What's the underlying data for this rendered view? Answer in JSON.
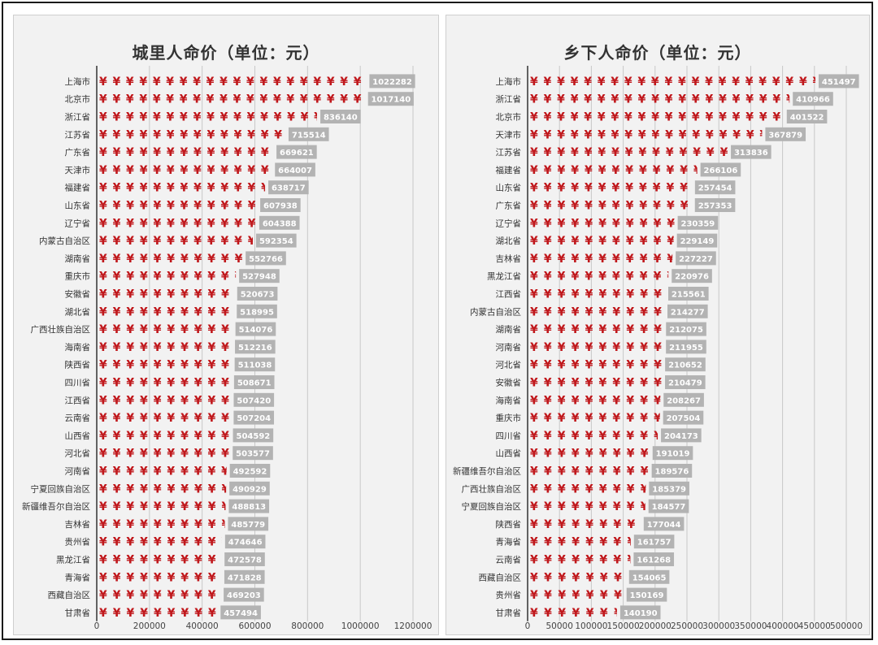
{
  "colors": {
    "yen": "#c0181c",
    "label_box": "#b3b3b3",
    "grid": "#c8c8c8",
    "axis": "#333333"
  },
  "chart_data": [
    {
      "type": "bar",
      "orientation": "horizontal",
      "mark_symbol": "¥",
      "title": "城里人命价（单位：元）",
      "xlim": [
        0,
        1200000
      ],
      "xticks": [
        "0",
        "200000",
        "400000",
        "600000",
        "800000",
        "1000000",
        "1200000"
      ],
      "grid": true,
      "categories": [
        "上海市",
        "北京市",
        "浙江省",
        "江苏省",
        "广东省",
        "天津市",
        "福建省",
        "山东省",
        "辽宁省",
        "内蒙古自治区",
        "湖南省",
        "重庆市",
        "安徽省",
        "湖北省",
        "广西壮族自治区",
        "海南省",
        "陕西省",
        "四川省",
        "江西省",
        "云南省",
        "山西省",
        "河北省",
        "河南省",
        "宁夏回族自治区",
        "新疆维吾尔自治区",
        "吉林省",
        "贵州省",
        "黑龙江省",
        "青海省",
        "西藏自治区",
        "甘肃省"
      ],
      "values": [
        1022282,
        1017140,
        836140,
        715514,
        669621,
        664007,
        638717,
        607938,
        604388,
        592354,
        552766,
        527948,
        520673,
        518995,
        514076,
        512216,
        511038,
        508671,
        507420,
        507204,
        504592,
        503577,
        492592,
        490929,
        488813,
        485779,
        474646,
        472578,
        471828,
        469203,
        457494
      ],
      "value_labels": [
        "1022282",
        "1017140",
        "836140",
        "715514",
        "669621",
        "664007",
        "638717",
        "607938",
        "604388",
        "592354",
        "552766",
        "527948",
        "520673",
        "518995",
        "514076",
        "512216",
        "511038",
        "508671",
        "507420",
        "507204",
        "504592",
        "503577",
        "492592",
        "490929",
        "488813",
        "485779",
        "474646",
        "472578",
        "471828",
        "469203",
        "457494"
      ]
    },
    {
      "type": "bar",
      "orientation": "horizontal",
      "mark_symbol": "¥",
      "title": "乡下人命价（单位：元）",
      "xlim": [
        0,
        500000
      ],
      "xticks": [
        "0",
        "50000",
        "100000",
        "150000",
        "200000",
        "250000",
        "300000",
        "350000",
        "400000",
        "450000",
        "500000"
      ],
      "grid": true,
      "categories": [
        "上海市",
        "浙江省",
        "北京市",
        "天津市",
        "江苏省",
        "福建省",
        "山东省",
        "广东省",
        "辽宁省",
        "湖北省",
        "吉林省",
        "黑龙江省",
        "江西省",
        "内蒙古自治区",
        "湖南省",
        "河南省",
        "河北省",
        "安徽省",
        "海南省",
        "重庆市",
        "四川省",
        "山西省",
        "新疆维吾尔自治区",
        "广西壮族自治区",
        "宁夏回族自治区",
        "陕西省",
        "青海省",
        "云南省",
        "西藏自治区",
        "贵州省",
        "甘肃省"
      ],
      "values": [
        451497,
        410966,
        401522,
        367879,
        313836,
        266106,
        257454,
        257353,
        230359,
        229149,
        227227,
        220976,
        215561,
        214277,
        212075,
        211955,
        210652,
        210479,
        208267,
        207504,
        204173,
        191019,
        189576,
        185379,
        184577,
        177044,
        161757,
        161268,
        154065,
        150169,
        140190
      ],
      "value_labels": [
        "451497",
        "410966",
        "401522",
        "367879",
        "313836",
        "266106",
        "257454",
        "257353",
        "230359",
        "229149",
        "227227",
        "220976",
        "215561",
        "214277",
        "212075",
        "211955",
        "210652",
        "210479",
        "208267",
        "207504",
        "204173",
        "191019",
        "189576",
        "185379",
        "184577",
        "177044",
        "161757",
        "161268",
        "154065",
        "150169",
        "140190"
      ]
    }
  ]
}
